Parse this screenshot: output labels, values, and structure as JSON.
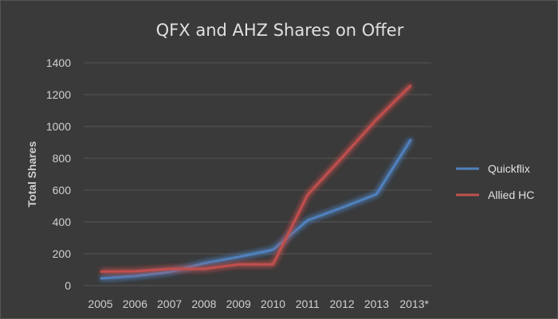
{
  "chart_data": {
    "type": "line",
    "title": "QFX and AHZ Shares on Offer",
    "xlabel": "",
    "ylabel": "Total Shares",
    "categories": [
      "2005",
      "2006",
      "2007",
      "2008",
      "2009",
      "2010",
      "2011",
      "2012",
      "2013",
      "2013*"
    ],
    "ylim": [
      0,
      1400
    ],
    "yticks": [
      0,
      200,
      400,
      600,
      800,
      1000,
      1200,
      1400
    ],
    "grid": true,
    "legend_position": "right",
    "series": [
      {
        "name": "Quickflix",
        "color": "#4f81bd",
        "values": [
          45,
          60,
          85,
          140,
          180,
          225,
          410,
          490,
          575,
          920
        ]
      },
      {
        "name": "Allied HC",
        "color": "#c0504d",
        "values": [
          88,
          90,
          105,
          105,
          133,
          133,
          570,
          805,
          1045,
          1260
        ]
      }
    ]
  }
}
